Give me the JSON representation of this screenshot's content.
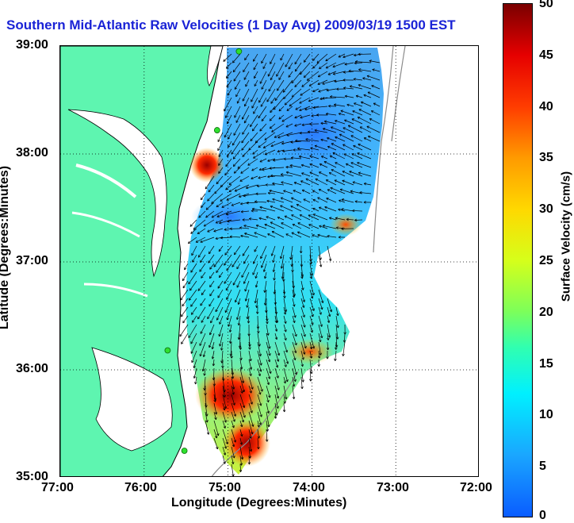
{
  "title": "Southern Mid-Atlantic Raw Velocities (1 Day Avg) 2009/03/19 1500 EST",
  "x_axis": {
    "label": "Longitude (Degrees:Minutes)",
    "ticks": [
      "77:00",
      "76:00",
      "75:00",
      "74:00",
      "73:00",
      "72:00"
    ]
  },
  "y_axis": {
    "label": "Latitude (Degrees:Minutes)",
    "ticks": [
      "39:00",
      "38:00",
      "37:00",
      "36:00",
      "35:00"
    ]
  },
  "colorbar": {
    "label": "Surface Velocity (cm/s)",
    "ticks": [
      "50",
      "45",
      "40",
      "35",
      "30",
      "25",
      "20",
      "15",
      "10",
      "5",
      "0"
    ],
    "range": [
      0,
      50
    ],
    "colormap": "jet"
  },
  "colors": {
    "title": "#1a23d6",
    "land": "#5ef5b0",
    "water": "#ffffff",
    "coastline": "#000000",
    "station_marker": "#2fe02f"
  },
  "map_data": {
    "lon_range": [
      -77.0,
      -72.0
    ],
    "lat_range": [
      35.0,
      39.0
    ],
    "grid": true,
    "stations": [
      {
        "lon": -74.87,
        "lat": 38.95
      },
      {
        "lon": -75.13,
        "lat": 38.22
      },
      {
        "lon": -75.72,
        "lat": 36.18
      },
      {
        "lon": -75.52,
        "lat": 35.25
      }
    ]
  }
}
